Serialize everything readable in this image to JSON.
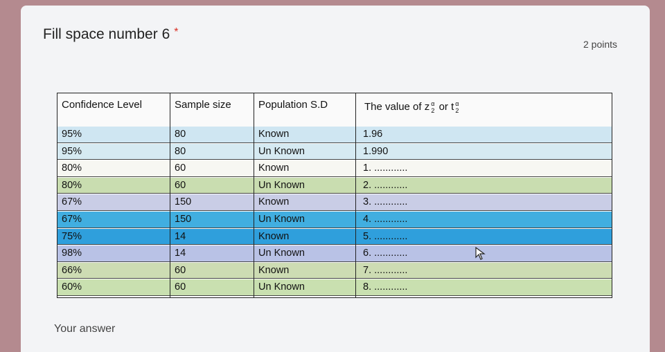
{
  "question": {
    "title": "Fill space number 6",
    "required_mark": "*",
    "points": "2 points",
    "answer_label": "Your answer"
  },
  "table": {
    "headers": {
      "confidence": "Confidence Level",
      "sample": "Sample size",
      "population": "Population S.D",
      "value_prefix": "The value of z",
      "value_mid": "or t",
      "frac_num": "α",
      "frac_den": "2"
    },
    "rows": [
      {
        "confidence": "95%",
        "sample": "80",
        "population": "Known",
        "value": "1.96"
      },
      {
        "confidence": "95%",
        "sample": "80",
        "population": "Un Known",
        "value": "1.990"
      },
      {
        "confidence": "80%",
        "sample": "60",
        "population": "Known",
        "value": "1. ............"
      },
      {
        "confidence": "80%",
        "sample": "60",
        "population": "Un Known",
        "value": "2. ............"
      },
      {
        "confidence": "67%",
        "sample": "150",
        "population": "Known",
        "value": "3. ............"
      },
      {
        "confidence": "67%",
        "sample": "150",
        "population": "Un Known",
        "value": "4. ............"
      },
      {
        "confidence": "75%",
        "sample": "14",
        "population": "Known",
        "value": "5. ............"
      },
      {
        "confidence": "98%",
        "sample": "14",
        "population": "Un Known",
        "value": "6. ............"
      },
      {
        "confidence": "66%",
        "sample": "60",
        "population": "Known",
        "value": "7. ............"
      },
      {
        "confidence": "60%",
        "sample": "60",
        "population": "Un Known",
        "value": "8. ............"
      }
    ],
    "row_colors": [
      "#cfe6f2",
      "#d6eaf2",
      "#f7f7f2",
      "#c9ddb0",
      "#c9cde6",
      "#41aee0",
      "#2f9fdc",
      "#b9c2e6",
      "#cddcb3",
      "#c9e0b0"
    ],
    "header_bg": "#fafafa",
    "accent_required": "#d93025"
  }
}
